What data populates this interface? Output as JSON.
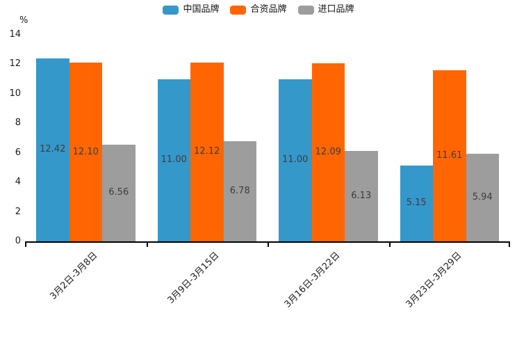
{
  "chart_data": {
    "type": "bar",
    "title": "",
    "xlabel": "",
    "ylabel": "%",
    "ylim": [
      0,
      14
    ],
    "yticks": [
      0,
      2,
      4,
      6,
      8,
      10,
      12,
      14
    ],
    "grid": false,
    "legend_position": "top-center",
    "categories": [
      "3月2日-3月8日",
      "3月9日-3月15日",
      "3月16日-3月22日",
      "3月23日-3月29日"
    ],
    "series": [
      {
        "name": "中国品牌",
        "color": "#3598ca",
        "values": [
          12.42,
          11.0,
          11.0,
          5.15
        ]
      },
      {
        "name": "合资品牌",
        "color": "#ff6603",
        "values": [
          12.1,
          12.12,
          12.09,
          11.61
        ]
      },
      {
        "name": "进口品牌",
        "color": "#9d9d9d",
        "values": [
          6.56,
          6.78,
          6.13,
          5.94
        ]
      }
    ],
    "value_label_decimals": 2,
    "axis_color": "#000000",
    "value_label_color": "#3c3c3c"
  }
}
